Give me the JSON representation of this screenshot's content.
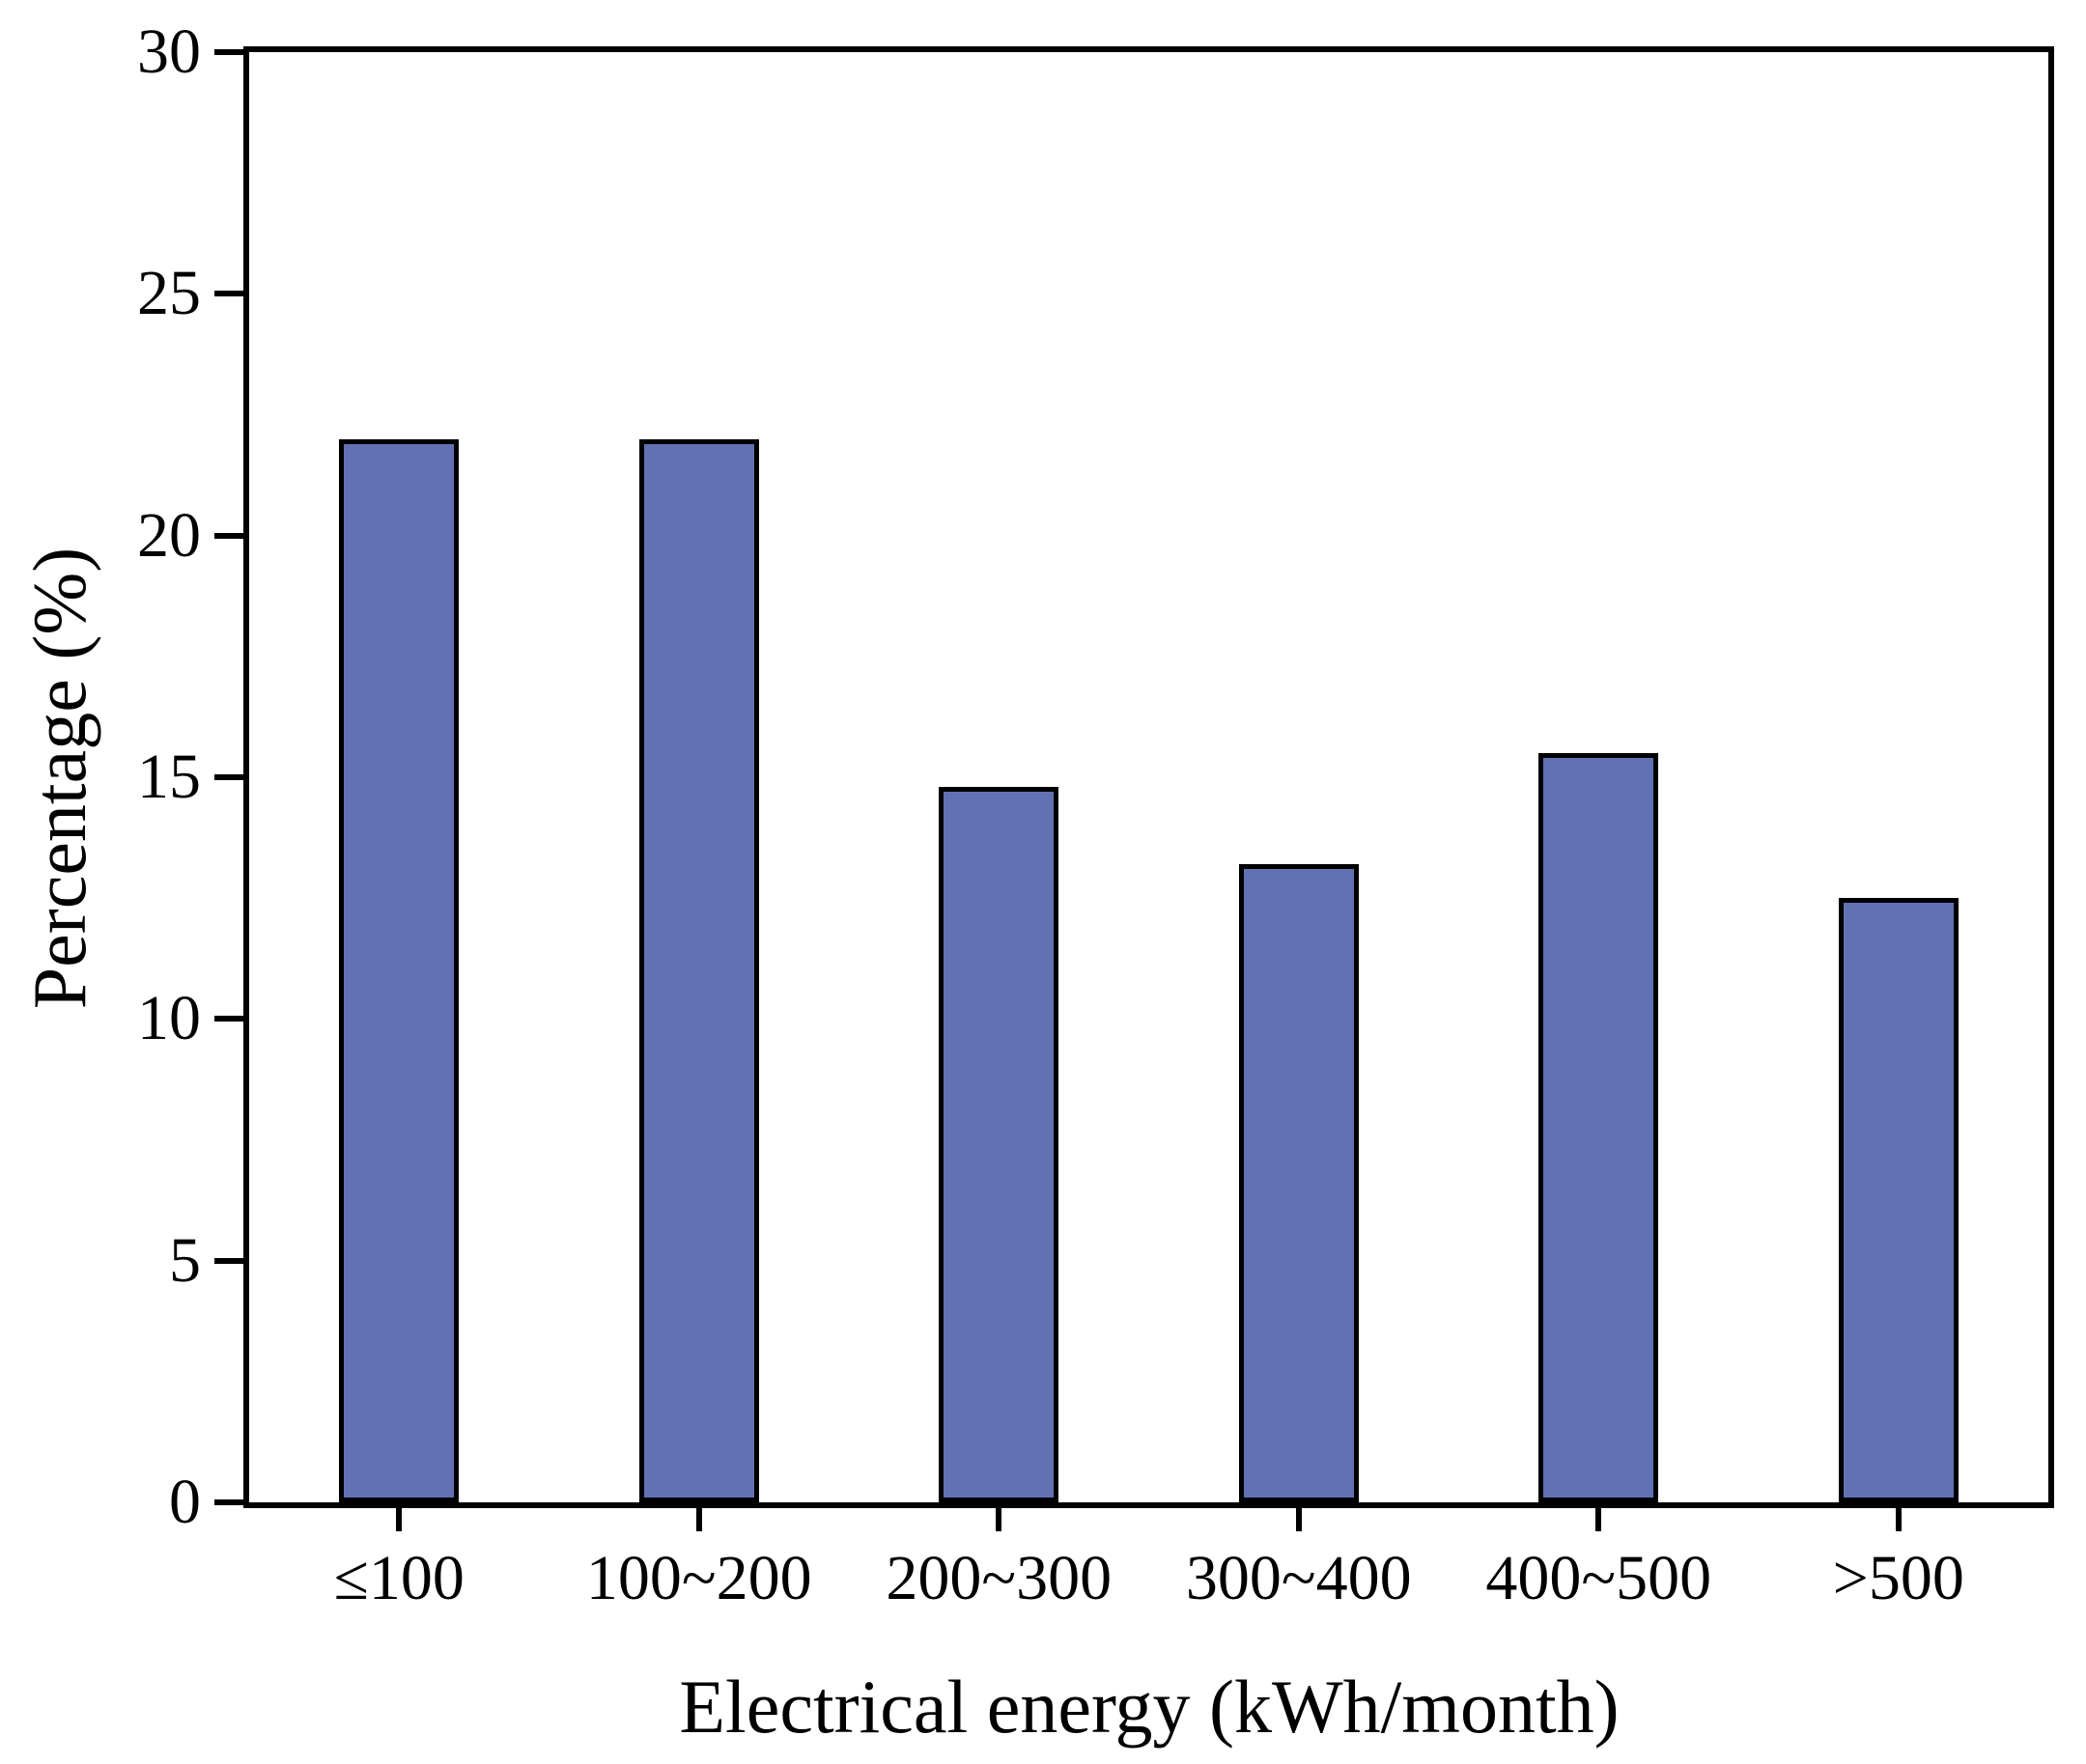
{
  "figure": {
    "background_color": "#ffffff",
    "text_color": "#000000"
  },
  "chart_data": {
    "type": "bar",
    "title": "",
    "categories": [
      "≤100",
      "100~200",
      "200~300",
      "300~400",
      "400~500",
      ">500"
    ],
    "values": [
      22,
      22,
      14.8,
      13.2,
      15.5,
      12.5
    ],
    "xlabel": "Electrical energy (kWh/month)",
    "ylabel": "Percentage (%)",
    "ylim": [
      0,
      30
    ],
    "yticks": [
      0,
      5,
      10,
      15,
      20,
      25,
      30
    ],
    "grid": false,
    "legend": null,
    "bar_fill_color": "#6171b2",
    "bar_edge_color": "#000000",
    "axis_color": "#000000"
  }
}
